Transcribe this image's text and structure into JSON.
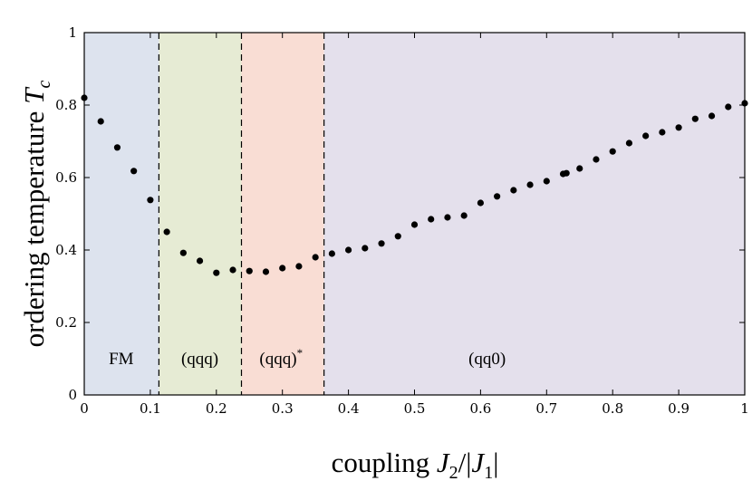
{
  "chart_data": {
    "type": "scatter",
    "title": "",
    "xlabel": "coupling J₂/|J₁|",
    "ylabel": "ordering temperature T_c",
    "xlabel_parts": {
      "main": "coupling ",
      "sym": "J",
      "sub1": "2",
      "mid": "/|",
      "sym2": "J",
      "sub2": "1",
      "end": "|"
    },
    "ylabel_parts": {
      "main": "ordering temperature ",
      "sym": "T",
      "sub": "c"
    },
    "xlim": [
      0,
      1
    ],
    "ylim": [
      0,
      1
    ],
    "grid": false,
    "x_ticks": [
      0,
      0.1,
      0.2,
      0.3,
      0.4,
      0.5,
      0.6,
      0.7,
      0.8,
      0.9,
      1
    ],
    "x_tick_labels": [
      "0",
      "0.1",
      "0.2",
      "0.3",
      "0.4",
      "0.5",
      "0.6",
      "0.7",
      "0.8",
      "0.9",
      "1"
    ],
    "y_ticks": [
      0,
      0.2,
      0.4,
      0.6,
      0.8,
      1
    ],
    "y_tick_labels": [
      "0",
      "0.2",
      "0.4",
      "0.6",
      "0.8",
      "1"
    ],
    "regions": [
      {
        "label": "FM",
        "x_start": 0.0,
        "x_end": 0.113,
        "color": "#dde3ee",
        "label_x": 0.056,
        "label_y": 0.085
      },
      {
        "label": "(qqq)",
        "x_start": 0.113,
        "x_end": 0.238,
        "color": "#e6ebd4",
        "label_x": 0.175,
        "label_y": 0.085
      },
      {
        "label": "(qqq)",
        "label_sup": "*",
        "x_start": 0.238,
        "x_end": 0.363,
        "color": "#f9ddd4",
        "label_x": 0.298,
        "label_y": 0.085
      },
      {
        "label": "(qq0)",
        "x_start": 0.363,
        "x_end": 1.0,
        "color": "#e4e0ec",
        "label_x": 0.61,
        "label_y": 0.085
      }
    ],
    "boundaries": [
      0.113,
      0.238,
      0.363
    ],
    "series": [
      {
        "marker_color": "#000000",
        "x": [
          0.0,
          0.025,
          0.05,
          0.075,
          0.1,
          0.125,
          0.15,
          0.175,
          0.2,
          0.225,
          0.25,
          0.275,
          0.3,
          0.325,
          0.35,
          0.375,
          0.4,
          0.425,
          0.45,
          0.475,
          0.5,
          0.525,
          0.55,
          0.575,
          0.6,
          0.625,
          0.65,
          0.675,
          0.7,
          0.725,
          0.73,
          0.75,
          0.775,
          0.8,
          0.825,
          0.85,
          0.875,
          0.9,
          0.925,
          0.95,
          0.975,
          1.0
        ],
        "y": [
          0.82,
          0.755,
          0.683,
          0.618,
          0.538,
          0.45,
          0.392,
          0.37,
          0.337,
          0.345,
          0.342,
          0.34,
          0.35,
          0.355,
          0.38,
          0.39,
          0.4,
          0.405,
          0.418,
          0.438,
          0.47,
          0.485,
          0.49,
          0.495,
          0.53,
          0.548,
          0.565,
          0.58,
          0.59,
          0.61,
          0.612,
          0.625,
          0.65,
          0.672,
          0.695,
          0.715,
          0.725,
          0.738,
          0.762,
          0.77,
          0.795,
          0.805
        ]
      }
    ]
  }
}
